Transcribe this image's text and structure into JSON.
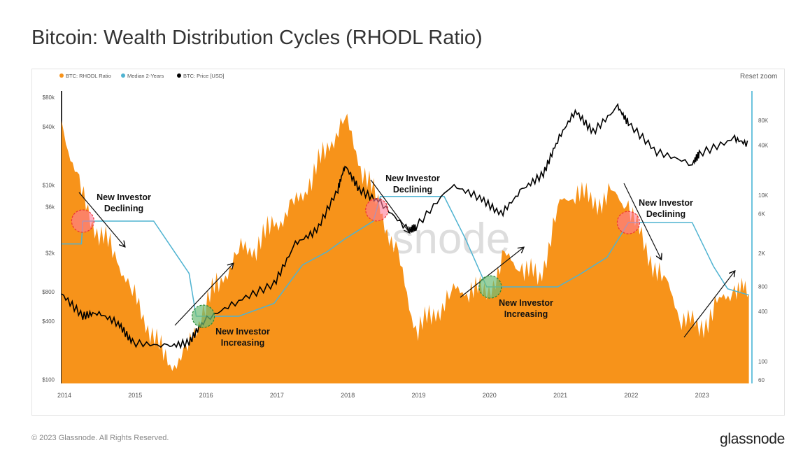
{
  "title": "Bitcoin: Wealth Distribution Cycles (RHODL Ratio)",
  "reset_zoom": "Reset zoom",
  "footer": "© 2023 Glassnode. All Rights Reserved.",
  "brand": "glassnode",
  "watermark": "glassnode",
  "chart_data": {
    "type": "line",
    "x_ticks": [
      "2014",
      "2015",
      "2016",
      "2017",
      "2018",
      "2019",
      "2020",
      "2021",
      "2022",
      "2023"
    ],
    "y_left": {
      "scale": "log",
      "ticks": [
        "$80k",
        "$40k",
        "$10k",
        "$6k",
        "$2k",
        "$800",
        "$400",
        "$100"
      ],
      "tick_values": [
        80000,
        40000,
        10000,
        6000,
        2000,
        800,
        400,
        100
      ],
      "range": [
        100,
        80000
      ]
    },
    "y_right": {
      "scale": "log",
      "ticks": [
        "80K",
        "40K",
        "10K",
        "6K",
        "2K",
        "800",
        "400",
        "100",
        "60"
      ],
      "tick_values": [
        80000,
        40000,
        10000,
        6000,
        2000,
        800,
        400,
        100,
        60
      ],
      "range": [
        60,
        80000
      ]
    },
    "legend_position": "top-left",
    "colors": {
      "rhodl": "#f7931a",
      "median": "#4fb3d1",
      "price": "#000000"
    },
    "series": [
      {
        "name": "BTC: RHODL Ratio",
        "axis": "right",
        "type": "area",
        "x": [
          2014.0,
          2014.25,
          2014.5,
          2014.75,
          2015.0,
          2015.25,
          2015.5,
          2015.75,
          2016.0,
          2016.25,
          2016.5,
          2016.75,
          2017.0,
          2017.25,
          2017.5,
          2017.75,
          2018.0,
          2018.25,
          2018.5,
          2018.75,
          2019.0,
          2019.25,
          2019.5,
          2019.75,
          2020.0,
          2020.25,
          2020.5,
          2020.75,
          2021.0,
          2021.25,
          2021.5,
          2021.75,
          2022.0,
          2022.25,
          2022.5,
          2022.75,
          2023.0,
          2023.25,
          2023.5,
          2023.7
        ],
        "values": [
          80000,
          12000,
          3700,
          2100,
          650,
          245,
          93,
          113,
          450,
          960,
          2100,
          2500,
          4500,
          6700,
          14500,
          38000,
          83000,
          21000,
          6700,
          1700,
          245,
          360,
          650,
          790,
          650,
          1700,
          1400,
          960,
          6700,
          12000,
          8100,
          9800,
          8100,
          2100,
          960,
          360,
          245,
          450,
          790,
          650
        ]
      },
      {
        "name": "Median 2-Years",
        "axis": "right",
        "type": "line",
        "x": [
          2014.0,
          2014.28,
          2014.3,
          2015.3,
          2015.8,
          2015.9,
          2016.5,
          2017.0,
          2017.4,
          2017.75,
          2018.0,
          2018.4,
          2018.5,
          2019.4,
          2019.7,
          2020.0,
          2021.0,
          2021.3,
          2021.7,
          2022.0,
          2022.9,
          2023.2,
          2023.4,
          2023.7
        ],
        "values": [
          2600,
          2600,
          4900,
          4900,
          1150,
          350,
          350,
          500,
          1450,
          2100,
          3000,
          4900,
          9700,
          9700,
          3000,
          790,
          790,
          1100,
          1800,
          4700,
          4700,
          1400,
          750,
          630
        ]
      },
      {
        "name": "BTC: Price [USD]",
        "axis": "left",
        "type": "line",
        "x": [
          2014.0,
          2014.3,
          2014.5,
          2014.8,
          2015.0,
          2015.5,
          2015.8,
          2016.0,
          2016.5,
          2017.0,
          2017.3,
          2017.6,
          2017.9,
          2018.0,
          2018.2,
          2018.5,
          2018.9,
          2019.0,
          2019.5,
          2019.9,
          2020.2,
          2020.5,
          2020.8,
          2021.0,
          2021.25,
          2021.5,
          2021.85,
          2022.0,
          2022.4,
          2022.9,
          2023.0,
          2023.5,
          2023.7
        ],
        "values": [
          760,
          450,
          490,
          380,
          240,
          220,
          240,
          400,
          650,
          960,
          2500,
          3400,
          9100,
          16000,
          9000,
          6600,
          3400,
          3700,
          10000,
          7500,
          5000,
          9000,
          13000,
          29000,
          58000,
          35000,
          64000,
          43000,
          22000,
          16500,
          21000,
          30000,
          26000
        ]
      }
    ],
    "annotations": [
      {
        "text": [
          "New Investor",
          "Declining"
        ],
        "x": 2014.3,
        "y_right": 4900,
        "kind": "declining"
      },
      {
        "text": [
          "New Investor",
          "Increasing"
        ],
        "x": 2016.0,
        "y_right": 350,
        "kind": "increasing"
      },
      {
        "text": [
          "New Investor",
          "Declining"
        ],
        "x": 2018.45,
        "y_right": 6700,
        "kind": "declining"
      },
      {
        "text": [
          "New Investor",
          "Increasing"
        ],
        "x": 2020.05,
        "y_right": 790,
        "kind": "increasing"
      },
      {
        "text": [
          "New Investor",
          "Declining"
        ],
        "x": 2022.0,
        "y_right": 4700,
        "kind": "declining"
      }
    ]
  }
}
